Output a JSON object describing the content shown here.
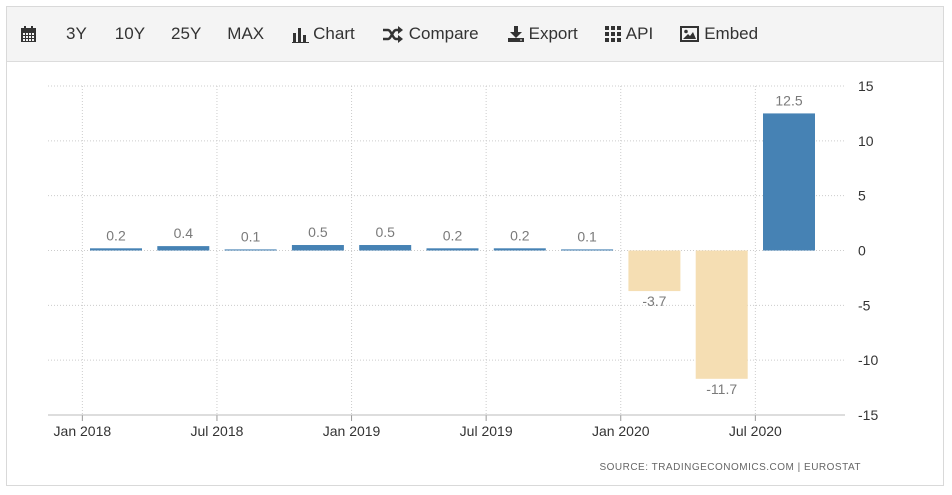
{
  "toolbar": {
    "items": [
      {
        "key": "calendar",
        "label": "",
        "icon": "calendar-icon"
      },
      {
        "key": "3y",
        "label": "3Y"
      },
      {
        "key": "10y",
        "label": "10Y"
      },
      {
        "key": "25y",
        "label": "25Y"
      },
      {
        "key": "max",
        "label": "MAX"
      },
      {
        "key": "chart",
        "label": "Chart",
        "icon": "bar-chart-icon"
      },
      {
        "key": "compare",
        "label": "Compare",
        "icon": "shuffle-icon"
      },
      {
        "key": "export",
        "label": "Export",
        "icon": "download-icon"
      },
      {
        "key": "api",
        "label": "API",
        "icon": "grid-icon"
      },
      {
        "key": "embed",
        "label": "Embed",
        "icon": "image-icon"
      }
    ]
  },
  "source_text": "SOURCE: TRADINGECONOMICS.COM  |  EUROSTAT",
  "chart_data": {
    "type": "bar",
    "categories": [
      "2018-Q1",
      "2018-Q2",
      "2018-Q3",
      "2018-Q4",
      "2019-Q1",
      "2019-Q2",
      "2019-Q3",
      "2019-Q4",
      "2020-Q1",
      "2020-Q2",
      "2020-Q3"
    ],
    "values": [
      0.2,
      0.4,
      0.1,
      0.5,
      0.5,
      0.2,
      0.2,
      0.1,
      -3.7,
      -11.7,
      12.5
    ],
    "data_labels": [
      "0.2",
      "0.4",
      "0.1",
      "0.5",
      "0.5",
      "0.2",
      "0.2",
      "0.1",
      "-3.7",
      "-11.7",
      "12.5"
    ],
    "x_tick_labels": [
      "Jan 2018",
      "Jul 2018",
      "Jan 2019",
      "Jul 2019",
      "Jan 2020",
      "Jul 2020"
    ],
    "y_ticks": [
      15,
      10,
      5,
      0,
      -5,
      -10,
      -15
    ],
    "ylim": [
      -15,
      15
    ],
    "y_axis_side": "right",
    "grid": true,
    "colors": {
      "positive": "#4682b4",
      "negative": "#f5deb3",
      "label": "#7a7a7a",
      "grid": "#cccccc"
    }
  }
}
